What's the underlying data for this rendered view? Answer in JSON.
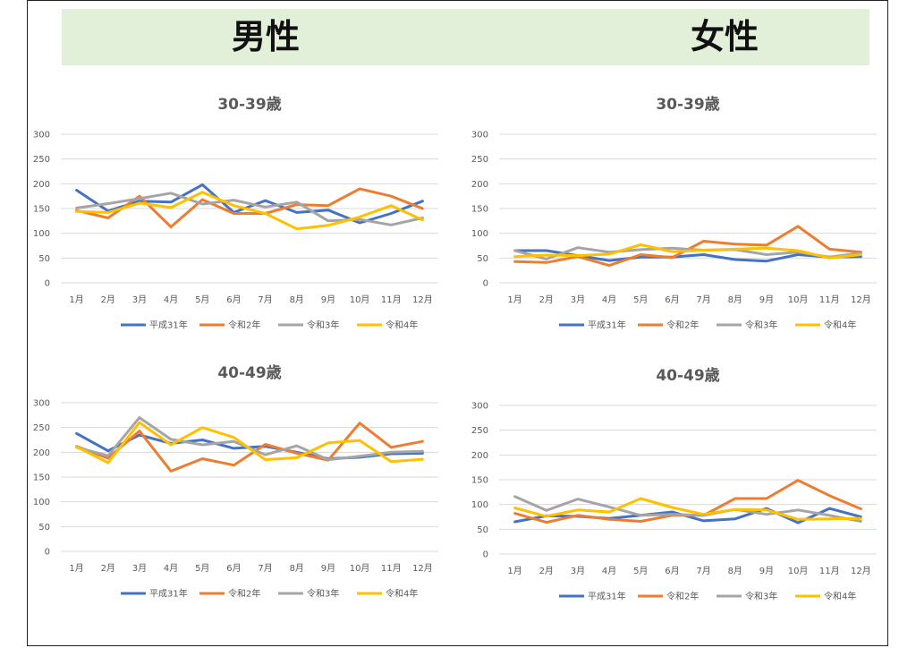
{
  "header": {
    "male_label": "男性",
    "female_label": "女性"
  },
  "colors": {
    "平成31年": "#4472c4",
    "令和2年": "#ed7d31",
    "令和3年": "#a5a5a5",
    "令和4年": "#ffc000",
    "grid": "#d9d9d9",
    "banner": "#e2efd9"
  },
  "chart_data": [
    {
      "type": "line",
      "group": "男性",
      "title": "30-39歳",
      "categories": [
        "1月",
        "2月",
        "3月",
        "4月",
        "5月",
        "6月",
        "7月",
        "8月",
        "9月",
        "10月",
        "11月",
        "12月"
      ],
      "ylim": [
        0,
        300
      ],
      "yticks": [
        0,
        50,
        100,
        150,
        200,
        250,
        300
      ],
      "grid": true,
      "legend": "bottom",
      "series": [
        {
          "name": "平成31年",
          "values": [
            187,
            145,
            165,
            163,
            198,
            142,
            166,
            142,
            147,
            121,
            140,
            165
          ]
        },
        {
          "name": "令和2年",
          "values": [
            146,
            131,
            175,
            113,
            168,
            140,
            140,
            158,
            156,
            190,
            175,
            150
          ]
        },
        {
          "name": "令和3年",
          "values": [
            151,
            160,
            170,
            181,
            159,
            167,
            153,
            163,
            125,
            128,
            117,
            131
          ]
        },
        {
          "name": "令和4年",
          "values": [
            144,
            142,
            161,
            152,
            183,
            156,
            140,
            109,
            116,
            133,
            156,
            127
          ]
        }
      ]
    },
    {
      "type": "line",
      "group": "女性",
      "title": "30-39歳",
      "categories": [
        "1月",
        "2月",
        "3月",
        "4月",
        "5月",
        "6月",
        "7月",
        "8月",
        "9月",
        "10月",
        "11月",
        "12月"
      ],
      "ylim": [
        0,
        300
      ],
      "yticks": [
        0,
        50,
        100,
        150,
        200,
        250,
        300
      ],
      "grid": true,
      "legend": "bottom",
      "series": [
        {
          "name": "平成31年",
          "values": [
            65,
            65,
            55,
            45,
            52,
            52,
            57,
            47,
            44,
            57,
            52,
            53
          ]
        },
        {
          "name": "令和2年",
          "values": [
            43,
            41,
            53,
            35,
            57,
            51,
            84,
            78,
            76,
            114,
            68,
            62
          ]
        },
        {
          "name": "令和3年",
          "values": [
            65,
            48,
            71,
            62,
            67,
            70,
            66,
            67,
            57,
            62,
            52,
            60
          ]
        },
        {
          "name": "令和4年",
          "values": [
            53,
            56,
            55,
            58,
            77,
            63,
            66,
            68,
            70,
            65,
            50,
            57
          ]
        }
      ]
    },
    {
      "type": "line",
      "group": "男性",
      "title": "40-49歳",
      "categories": [
        "1月",
        "2月",
        "3月",
        "4月",
        "5月",
        "6月",
        "7月",
        "8月",
        "9月",
        "10月",
        "11月",
        "12月"
      ],
      "ylim": [
        0,
        300
      ],
      "yticks": [
        0,
        50,
        100,
        150,
        200,
        250,
        300
      ],
      "grid": true,
      "legend": "bottom",
      "series": [
        {
          "name": "平成31年",
          "values": [
            238,
            203,
            235,
            218,
            225,
            208,
            212,
            200,
            187,
            190,
            197,
            198
          ]
        },
        {
          "name": "令和2年",
          "values": [
            212,
            188,
            243,
            162,
            187,
            174,
            216,
            198,
            184,
            259,
            210,
            222
          ]
        },
        {
          "name": "令和3年",
          "values": [
            210,
            193,
            270,
            226,
            215,
            222,
            195,
            213,
            185,
            192,
            200,
            202
          ]
        },
        {
          "name": "令和4年",
          "values": [
            211,
            179,
            260,
            215,
            250,
            230,
            185,
            189,
            219,
            224,
            181,
            186
          ]
        }
      ]
    },
    {
      "type": "line",
      "group": "女性",
      "title": "40-49歳",
      "categories": [
        "1月",
        "2月",
        "3月",
        "4月",
        "5月",
        "6月",
        "7月",
        "8月",
        "9月",
        "10月",
        "11月",
        "12月"
      ],
      "ylim": [
        0,
        300
      ],
      "yticks": [
        0,
        50,
        100,
        150,
        200,
        250,
        300
      ],
      "grid": true,
      "legend": "bottom",
      "series": [
        {
          "name": "平成31年",
          "values": [
            65,
            77,
            76,
            72,
            78,
            85,
            67,
            71,
            92,
            63,
            92,
            75
          ]
        },
        {
          "name": "令和2年",
          "values": [
            82,
            64,
            78,
            70,
            66,
            78,
            78,
            112,
            112,
            149,
            118,
            91
          ]
        },
        {
          "name": "令和3年",
          "values": [
            116,
            88,
            111,
            95,
            78,
            80,
            78,
            90,
            80,
            89,
            78,
            66
          ]
        },
        {
          "name": "令和4年",
          "values": [
            93,
            76,
            89,
            85,
            112,
            94,
            80,
            90,
            89,
            70,
            71,
            72
          ]
        }
      ]
    }
  ]
}
